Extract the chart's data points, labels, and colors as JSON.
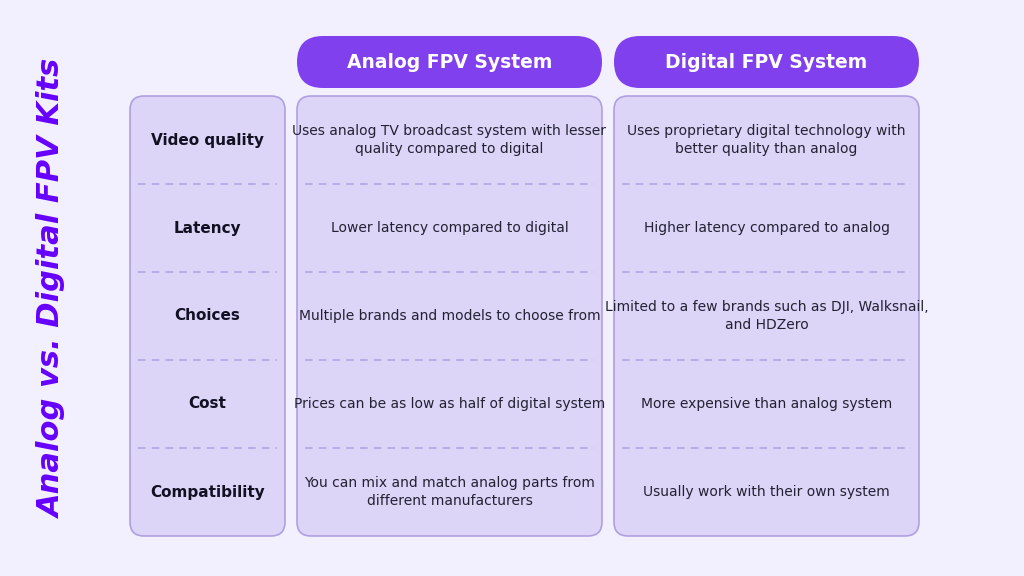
{
  "title": "Analog vs. Digital FPV Kits",
  "background_color": "#f2effe",
  "header_color": "#8040ee",
  "header_text_color": "#ffffff",
  "cell_bg_color": "#ddd5f8",
  "row_label_color": "#111122",
  "cell_text_color": "#222233",
  "title_color": "#6600ff",
  "border_color": "#b0a0e0",
  "headers": [
    "Analog FPV System",
    "Digital FPV System"
  ],
  "row_labels": [
    "Video quality",
    "Latency",
    "Choices",
    "Cost",
    "Compatibility"
  ],
  "analog_data": [
    "Uses analog TV broadcast system with lesser\nquality compared to digital",
    "Lower latency compared to digital",
    "Multiple brands and models to choose from",
    "Prices can be as low as half of digital system",
    "You can mix and match analog parts from\ndifferent manufacturers"
  ],
  "digital_data": [
    "Uses proprietary digital technology with\nbetter quality than analog",
    "Higher latency compared to analog",
    "Limited to a few brands such as DJI, Walksnail,\nand HDZero",
    "More expensive than analog system",
    "Usually work with their own system"
  ]
}
